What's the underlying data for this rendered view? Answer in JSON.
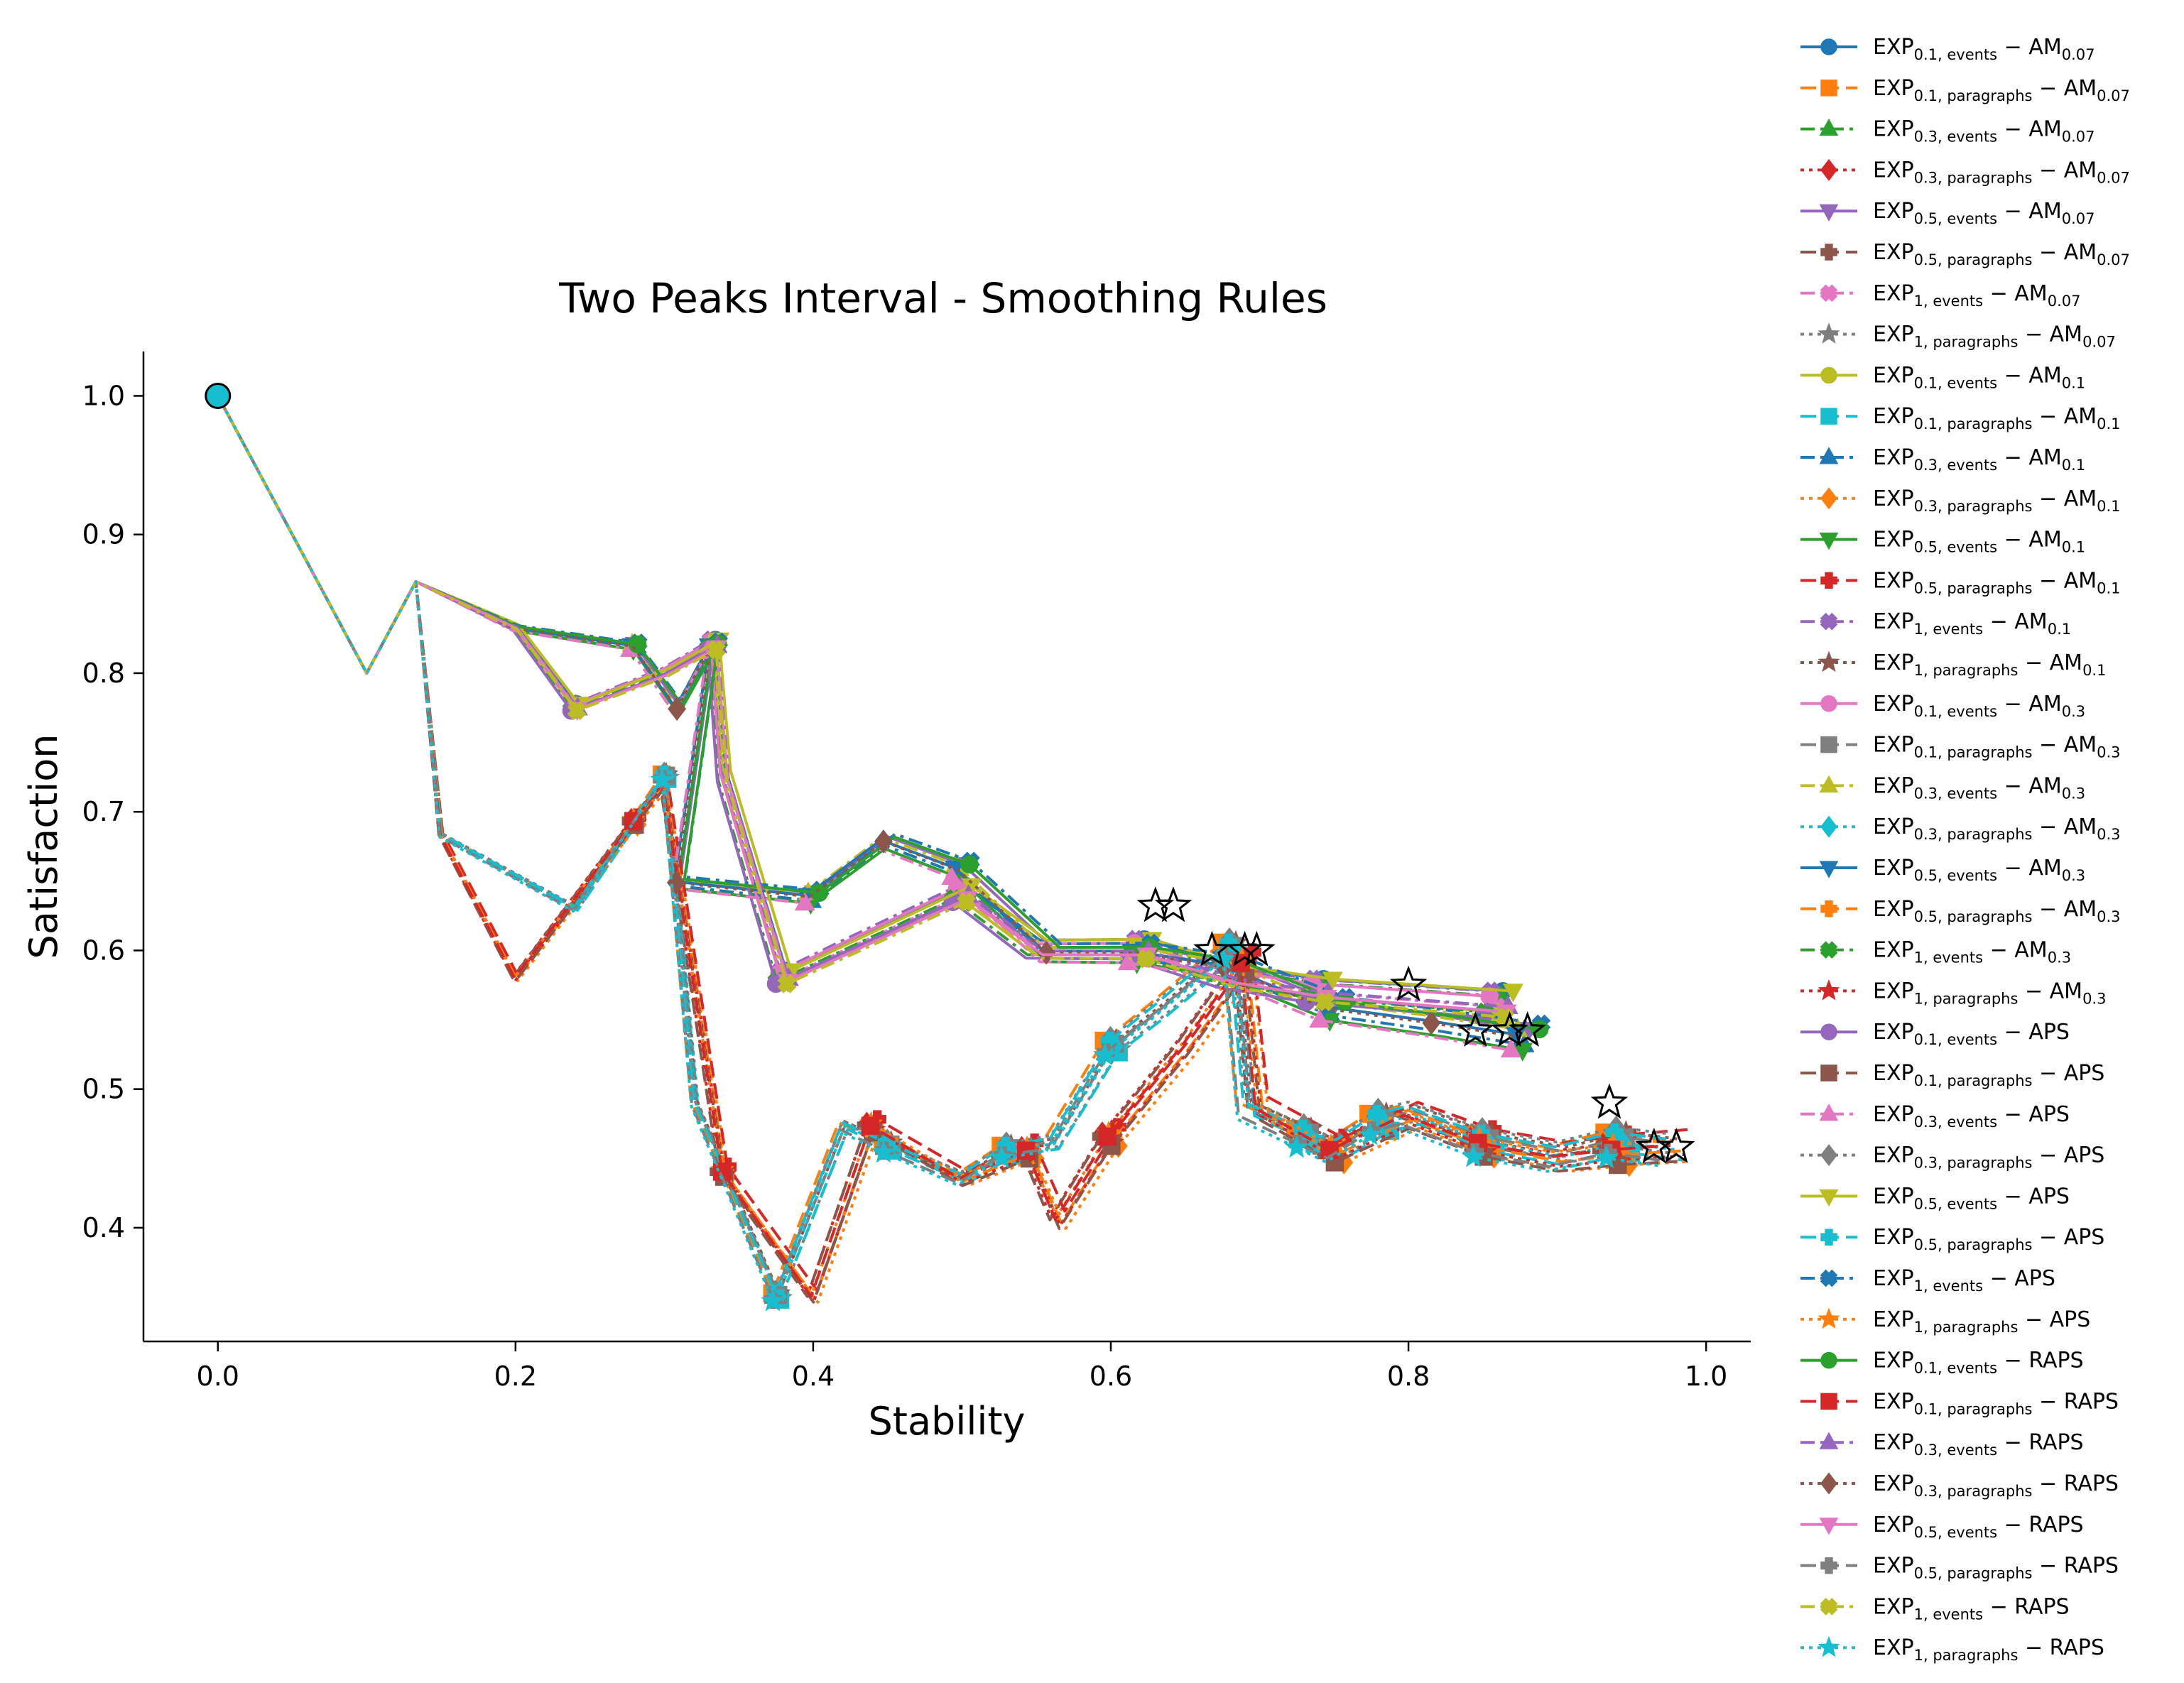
{
  "chart_data": {
    "type": "line",
    "title": "Two Peaks Interval - Smoothing Rules",
    "xlabel": "Stability",
    "ylabel": "Satisfaction",
    "xlim": [
      -0.05,
      1.03
    ],
    "ylim": [
      0.318,
      1.032
    ],
    "xticks": [
      {
        "v": 0.0,
        "label": "0.0"
      },
      {
        "v": 0.2,
        "label": "0.2"
      },
      {
        "v": 0.4,
        "label": "0.4"
      },
      {
        "v": 0.6,
        "label": "0.6"
      },
      {
        "v": 0.8,
        "label": "0.8"
      },
      {
        "v": 1.0,
        "label": "1.0"
      }
    ],
    "yticks": [
      {
        "v": 0.4,
        "label": "0.4"
      },
      {
        "v": 0.5,
        "label": "0.5"
      },
      {
        "v": 0.6,
        "label": "0.6"
      },
      {
        "v": 0.7,
        "label": "0.7"
      },
      {
        "v": 0.8,
        "label": "0.8"
      },
      {
        "v": 0.9,
        "label": "0.9"
      },
      {
        "v": 1.0,
        "label": "1.0"
      }
    ],
    "grid": false,
    "legend_position": "outside-right",
    "start_point": {
      "x": 0.0,
      "y": 1.0,
      "color": "#17becf"
    },
    "paths": {
      "A": [
        [
          0.0,
          1.0
        ],
        [
          0.1,
          0.8
        ],
        [
          0.133,
          0.866
        ],
        [
          0.2,
          0.833
        ],
        [
          0.24,
          0.775
        ],
        [
          0.3,
          0.8
        ],
        [
          0.333,
          0.82
        ],
        [
          0.34,
          0.725
        ],
        [
          0.38,
          0.58
        ],
        [
          0.42,
          0.6
        ],
        [
          0.5,
          0.64
        ],
        [
          0.55,
          0.6
        ],
        [
          0.62,
          0.6
        ],
        [
          0.68,
          0.58
        ],
        [
          0.74,
          0.57
        ],
        [
          0.8,
          0.565
        ],
        [
          0.86,
          0.56
        ]
      ],
      "B": [
        [
          0.0,
          1.0
        ],
        [
          0.1,
          0.8
        ],
        [
          0.133,
          0.866
        ],
        [
          0.2,
          0.833
        ],
        [
          0.28,
          0.82
        ],
        [
          0.31,
          0.775
        ],
        [
          0.333,
          0.82
        ],
        [
          0.31,
          0.65
        ],
        [
          0.4,
          0.64
        ],
        [
          0.45,
          0.68
        ],
        [
          0.5,
          0.66
        ],
        [
          0.56,
          0.6
        ],
        [
          0.62,
          0.6
        ],
        [
          0.68,
          0.59
        ],
        [
          0.75,
          0.56
        ],
        [
          0.82,
          0.55
        ],
        [
          0.88,
          0.54
        ]
      ],
      "C": [
        [
          0.0,
          1.0
        ],
        [
          0.1,
          0.8
        ],
        [
          0.133,
          0.866
        ],
        [
          0.15,
          0.683
        ],
        [
          0.24,
          0.63
        ],
        [
          0.3,
          0.725
        ],
        [
          0.32,
          0.49
        ],
        [
          0.375,
          0.35
        ],
        [
          0.42,
          0.473
        ],
        [
          0.45,
          0.458
        ],
        [
          0.5,
          0.435
        ],
        [
          0.53,
          0.455
        ],
        [
          0.56,
          0.46
        ],
        [
          0.6,
          0.53
        ],
        [
          0.63,
          0.555
        ],
        [
          0.68,
          0.6
        ],
        [
          0.69,
          0.485
        ],
        [
          0.73,
          0.465
        ],
        [
          0.75,
          0.455
        ],
        [
          0.78,
          0.475
        ],
        [
          0.8,
          0.48
        ],
        [
          0.85,
          0.46
        ],
        [
          0.9,
          0.45
        ],
        [
          0.94,
          0.46
        ],
        [
          0.975,
          0.455
        ]
      ],
      "D": [
        [
          0.0,
          1.0
        ],
        [
          0.1,
          0.8
        ],
        [
          0.133,
          0.866
        ],
        [
          0.15,
          0.683
        ],
        [
          0.2,
          0.58
        ],
        [
          0.28,
          0.693
        ],
        [
          0.3,
          0.72
        ],
        [
          0.34,
          0.44
        ],
        [
          0.4,
          0.35
        ],
        [
          0.44,
          0.473
        ],
        [
          0.5,
          0.435
        ],
        [
          0.545,
          0.455
        ],
        [
          0.565,
          0.405
        ],
        [
          0.6,
          0.465
        ],
        [
          0.65,
          0.53
        ],
        [
          0.69,
          0.59
        ],
        [
          0.7,
          0.485
        ],
        [
          0.75,
          0.455
        ],
        [
          0.8,
          0.48
        ],
        [
          0.85,
          0.46
        ],
        [
          0.9,
          0.45
        ],
        [
          0.94,
          0.455
        ],
        [
          0.98,
          0.458
        ]
      ]
    },
    "final_points": [
      {
        "x": 0.63,
        "y": 0.632
      },
      {
        "x": 0.642,
        "y": 0.632
      },
      {
        "x": 0.668,
        "y": 0.6
      },
      {
        "x": 0.69,
        "y": 0.6
      },
      {
        "x": 0.698,
        "y": 0.6
      },
      {
        "x": 0.8,
        "y": 0.575
      },
      {
        "x": 0.845,
        "y": 0.542
      },
      {
        "x": 0.868,
        "y": 0.542
      },
      {
        "x": 0.88,
        "y": 0.542
      },
      {
        "x": 0.935,
        "y": 0.49
      },
      {
        "x": 0.965,
        "y": 0.458
      },
      {
        "x": 0.98,
        "y": 0.458
      }
    ],
    "series": [
      {
        "name": "EXP_{0.1, events} − AM_{0.07}",
        "base": "EXP",
        "sub1": "0.1, events",
        "rule": "AM",
        "sub2": "0.07",
        "color": "#1f77b4",
        "marker": "circle",
        "dash": "solid",
        "path": "A"
      },
      {
        "name": "EXP_{0.1, paragraphs} − AM_{0.07}",
        "base": "EXP",
        "sub1": "0.1, paragraphs",
        "rule": "AM",
        "sub2": "0.07",
        "color": "#ff7f0e",
        "marker": "square",
        "dash": "dashed",
        "path": "C"
      },
      {
        "name": "EXP_{0.3, events} − AM_{0.07}",
        "base": "EXP",
        "sub1": "0.3, events",
        "rule": "AM",
        "sub2": "0.07",
        "color": "#2ca02c",
        "marker": "triangle-up",
        "dash": "dashdot",
        "path": "A"
      },
      {
        "name": "EXP_{0.3, paragraphs} − AM_{0.07}",
        "base": "EXP",
        "sub1": "0.3, paragraphs",
        "rule": "AM",
        "sub2": "0.07",
        "color": "#d62728",
        "marker": "diamond",
        "dash": "dotted",
        "path": "D"
      },
      {
        "name": "EXP_{0.5, events} − AM_{0.07}",
        "base": "EXP",
        "sub1": "0.5, events",
        "rule": "AM",
        "sub2": "0.07",
        "color": "#9467bd",
        "marker": "triangle-down",
        "dash": "solid",
        "path": "B"
      },
      {
        "name": "EXP_{0.5, paragraphs} − AM_{0.07}",
        "base": "EXP",
        "sub1": "0.5, paragraphs",
        "rule": "AM",
        "sub2": "0.07",
        "color": "#8c564b",
        "marker": "plus",
        "dash": "dashed",
        "path": "D"
      },
      {
        "name": "EXP_{1, events} − AM_{0.07}",
        "base": "EXP",
        "sub1": "1, events",
        "rule": "AM",
        "sub2": "0.07",
        "color": "#e377c2",
        "marker": "x",
        "dash": "dashdot",
        "path": "A"
      },
      {
        "name": "EXP_{1, paragraphs} − AM_{0.07}",
        "base": "EXP",
        "sub1": "1, paragraphs",
        "rule": "AM",
        "sub2": "0.07",
        "color": "#7f7f7f",
        "marker": "star",
        "dash": "dotted",
        "path": "C"
      },
      {
        "name": "EXP_{0.1, events} − AM_{0.1}",
        "base": "EXP",
        "sub1": "0.1, events",
        "rule": "AM",
        "sub2": "0.1",
        "color": "#bcbd22",
        "marker": "circle",
        "dash": "solid",
        "path": "A"
      },
      {
        "name": "EXP_{0.1, paragraphs} − AM_{0.1}",
        "base": "EXP",
        "sub1": "0.1, paragraphs",
        "rule": "AM",
        "sub2": "0.1",
        "color": "#17becf",
        "marker": "square",
        "dash": "dashed",
        "path": "C"
      },
      {
        "name": "EXP_{0.3, events} − AM_{0.1}",
        "base": "EXP",
        "sub1": "0.3, events",
        "rule": "AM",
        "sub2": "0.1",
        "color": "#1f77b4",
        "marker": "triangle-up",
        "dash": "dashdot",
        "path": "B"
      },
      {
        "name": "EXP_{0.3, paragraphs} − AM_{0.1}",
        "base": "EXP",
        "sub1": "0.3, paragraphs",
        "rule": "AM",
        "sub2": "0.1",
        "color": "#ff7f0e",
        "marker": "diamond",
        "dash": "dotted",
        "path": "D"
      },
      {
        "name": "EXP_{0.5, events} − AM_{0.1}",
        "base": "EXP",
        "sub1": "0.5, events",
        "rule": "AM",
        "sub2": "0.1",
        "color": "#2ca02c",
        "marker": "triangle-down",
        "dash": "solid",
        "path": "B"
      },
      {
        "name": "EXP_{0.5, paragraphs} − AM_{0.1}",
        "base": "EXP",
        "sub1": "0.5, paragraphs",
        "rule": "AM",
        "sub2": "0.1",
        "color": "#d62728",
        "marker": "plus",
        "dash": "dashed",
        "path": "D"
      },
      {
        "name": "EXP_{1, events} − AM_{0.1}",
        "base": "EXP",
        "sub1": "1, events",
        "rule": "AM",
        "sub2": "0.1",
        "color": "#9467bd",
        "marker": "x",
        "dash": "dashdot",
        "path": "A"
      },
      {
        "name": "EXP_{1, paragraphs} − AM_{0.1}",
        "base": "EXP",
        "sub1": "1, paragraphs",
        "rule": "AM",
        "sub2": "0.1",
        "color": "#8c564b",
        "marker": "star",
        "dash": "dotted",
        "path": "C"
      },
      {
        "name": "EXP_{0.1, events} − AM_{0.3}",
        "base": "EXP",
        "sub1": "0.1, events",
        "rule": "AM",
        "sub2": "0.3",
        "color": "#e377c2",
        "marker": "circle",
        "dash": "solid",
        "path": "A"
      },
      {
        "name": "EXP_{0.1, paragraphs} − AM_{0.3}",
        "base": "EXP",
        "sub1": "0.1, paragraphs",
        "rule": "AM",
        "sub2": "0.3",
        "color": "#7f7f7f",
        "marker": "square",
        "dash": "dashed",
        "path": "C"
      },
      {
        "name": "EXP_{0.3, events} − AM_{0.3}",
        "base": "EXP",
        "sub1": "0.3, events",
        "rule": "AM",
        "sub2": "0.3",
        "color": "#bcbd22",
        "marker": "triangle-up",
        "dash": "dashdot",
        "path": "B"
      },
      {
        "name": "EXP_{0.3, paragraphs} − AM_{0.3}",
        "base": "EXP",
        "sub1": "0.3, paragraphs",
        "rule": "AM",
        "sub2": "0.3",
        "color": "#17becf",
        "marker": "diamond",
        "dash": "dotted",
        "path": "C"
      },
      {
        "name": "EXP_{0.5, events} − AM_{0.3}",
        "base": "EXP",
        "sub1": "0.5, events",
        "rule": "AM",
        "sub2": "0.3",
        "color": "#1f77b4",
        "marker": "triangle-down",
        "dash": "solid",
        "path": "B"
      },
      {
        "name": "EXP_{0.5, paragraphs} − AM_{0.3}",
        "base": "EXP",
        "sub1": "0.5, paragraphs",
        "rule": "AM",
        "sub2": "0.3",
        "color": "#ff7f0e",
        "marker": "plus",
        "dash": "dashed",
        "path": "D"
      },
      {
        "name": "EXP_{1, events} − AM_{0.3}",
        "base": "EXP",
        "sub1": "1, events",
        "rule": "AM",
        "sub2": "0.3",
        "color": "#2ca02c",
        "marker": "x",
        "dash": "dashdot",
        "path": "A"
      },
      {
        "name": "EXP_{1, paragraphs} − AM_{0.3}",
        "base": "EXP",
        "sub1": "1, paragraphs",
        "rule": "AM",
        "sub2": "0.3",
        "color": "#d62728",
        "marker": "star",
        "dash": "dotted",
        "path": "D"
      },
      {
        "name": "EXP_{0.1, events} − APS",
        "base": "EXP",
        "sub1": "0.1, events",
        "rule": "APS",
        "sub2": "",
        "color": "#9467bd",
        "marker": "circle",
        "dash": "solid",
        "path": "A"
      },
      {
        "name": "EXP_{0.1, paragraphs} − APS",
        "base": "EXP",
        "sub1": "0.1, paragraphs",
        "rule": "APS",
        "sub2": "",
        "color": "#8c564b",
        "marker": "square",
        "dash": "dashed",
        "path": "D"
      },
      {
        "name": "EXP_{0.3, events} − APS",
        "base": "EXP",
        "sub1": "0.3, events",
        "rule": "APS",
        "sub2": "",
        "color": "#e377c2",
        "marker": "triangle-up",
        "dash": "dashdot",
        "path": "B"
      },
      {
        "name": "EXP_{0.3, paragraphs} − APS",
        "base": "EXP",
        "sub1": "0.3, paragraphs",
        "rule": "APS",
        "sub2": "",
        "color": "#7f7f7f",
        "marker": "diamond",
        "dash": "dotted",
        "path": "C"
      },
      {
        "name": "EXP_{0.5, events} − APS",
        "base": "EXP",
        "sub1": "0.5, events",
        "rule": "APS",
        "sub2": "",
        "color": "#bcbd22",
        "marker": "triangle-down",
        "dash": "solid",
        "path": "A"
      },
      {
        "name": "EXP_{0.5, paragraphs} − APS",
        "base": "EXP",
        "sub1": "0.5, paragraphs",
        "rule": "APS",
        "sub2": "",
        "color": "#17becf",
        "marker": "plus",
        "dash": "dashed",
        "path": "C"
      },
      {
        "name": "EXP_{1, events} − APS",
        "base": "EXP",
        "sub1": "1, events",
        "rule": "APS",
        "sub2": "",
        "color": "#1f77b4",
        "marker": "x",
        "dash": "dashdot",
        "path": "B"
      },
      {
        "name": "EXP_{1, paragraphs} − APS",
        "base": "EXP",
        "sub1": "1, paragraphs",
        "rule": "APS",
        "sub2": "",
        "color": "#ff7f0e",
        "marker": "star",
        "dash": "dotted",
        "path": "D"
      },
      {
        "name": "EXP_{0.1, events} − RAPS",
        "base": "EXP",
        "sub1": "0.1, events",
        "rule": "RAPS",
        "sub2": "",
        "color": "#2ca02c",
        "marker": "circle",
        "dash": "solid",
        "path": "B"
      },
      {
        "name": "EXP_{0.1, paragraphs} − RAPS",
        "base": "EXP",
        "sub1": "0.1, paragraphs",
        "rule": "RAPS",
        "sub2": "",
        "color": "#d62728",
        "marker": "square",
        "dash": "dashed",
        "path": "D"
      },
      {
        "name": "EXP_{0.3, events} − RAPS",
        "base": "EXP",
        "sub1": "0.3, events",
        "rule": "RAPS",
        "sub2": "",
        "color": "#9467bd",
        "marker": "triangle-up",
        "dash": "dashdot",
        "path": "A"
      },
      {
        "name": "EXP_{0.3, paragraphs} − RAPS",
        "base": "EXP",
        "sub1": "0.3, paragraphs",
        "rule": "RAPS",
        "sub2": "",
        "color": "#8c564b",
        "marker": "diamond",
        "dash": "dotted",
        "path": "B"
      },
      {
        "name": "EXP_{0.5, events} − RAPS",
        "base": "EXP",
        "sub1": "0.5, events",
        "rule": "RAPS",
        "sub2": "",
        "color": "#e377c2",
        "marker": "triangle-down",
        "dash": "solid",
        "path": "A"
      },
      {
        "name": "EXP_{0.5, paragraphs} − RAPS",
        "base": "EXP",
        "sub1": "0.5, paragraphs",
        "rule": "RAPS",
        "sub2": "",
        "color": "#7f7f7f",
        "marker": "plus",
        "dash": "dashed",
        "path": "C"
      },
      {
        "name": "EXP_{1, events} − RAPS",
        "base": "EXP",
        "sub1": "1, events",
        "rule": "RAPS",
        "sub2": "",
        "color": "#bcbd22",
        "marker": "x",
        "dash": "dashdot",
        "path": "A"
      },
      {
        "name": "EXP_{1, paragraphs} − RAPS",
        "base": "EXP",
        "sub1": "1, paragraphs",
        "rule": "RAPS",
        "sub2": "",
        "color": "#17becf",
        "marker": "star",
        "dash": "dotted",
        "path": "C"
      }
    ]
  }
}
